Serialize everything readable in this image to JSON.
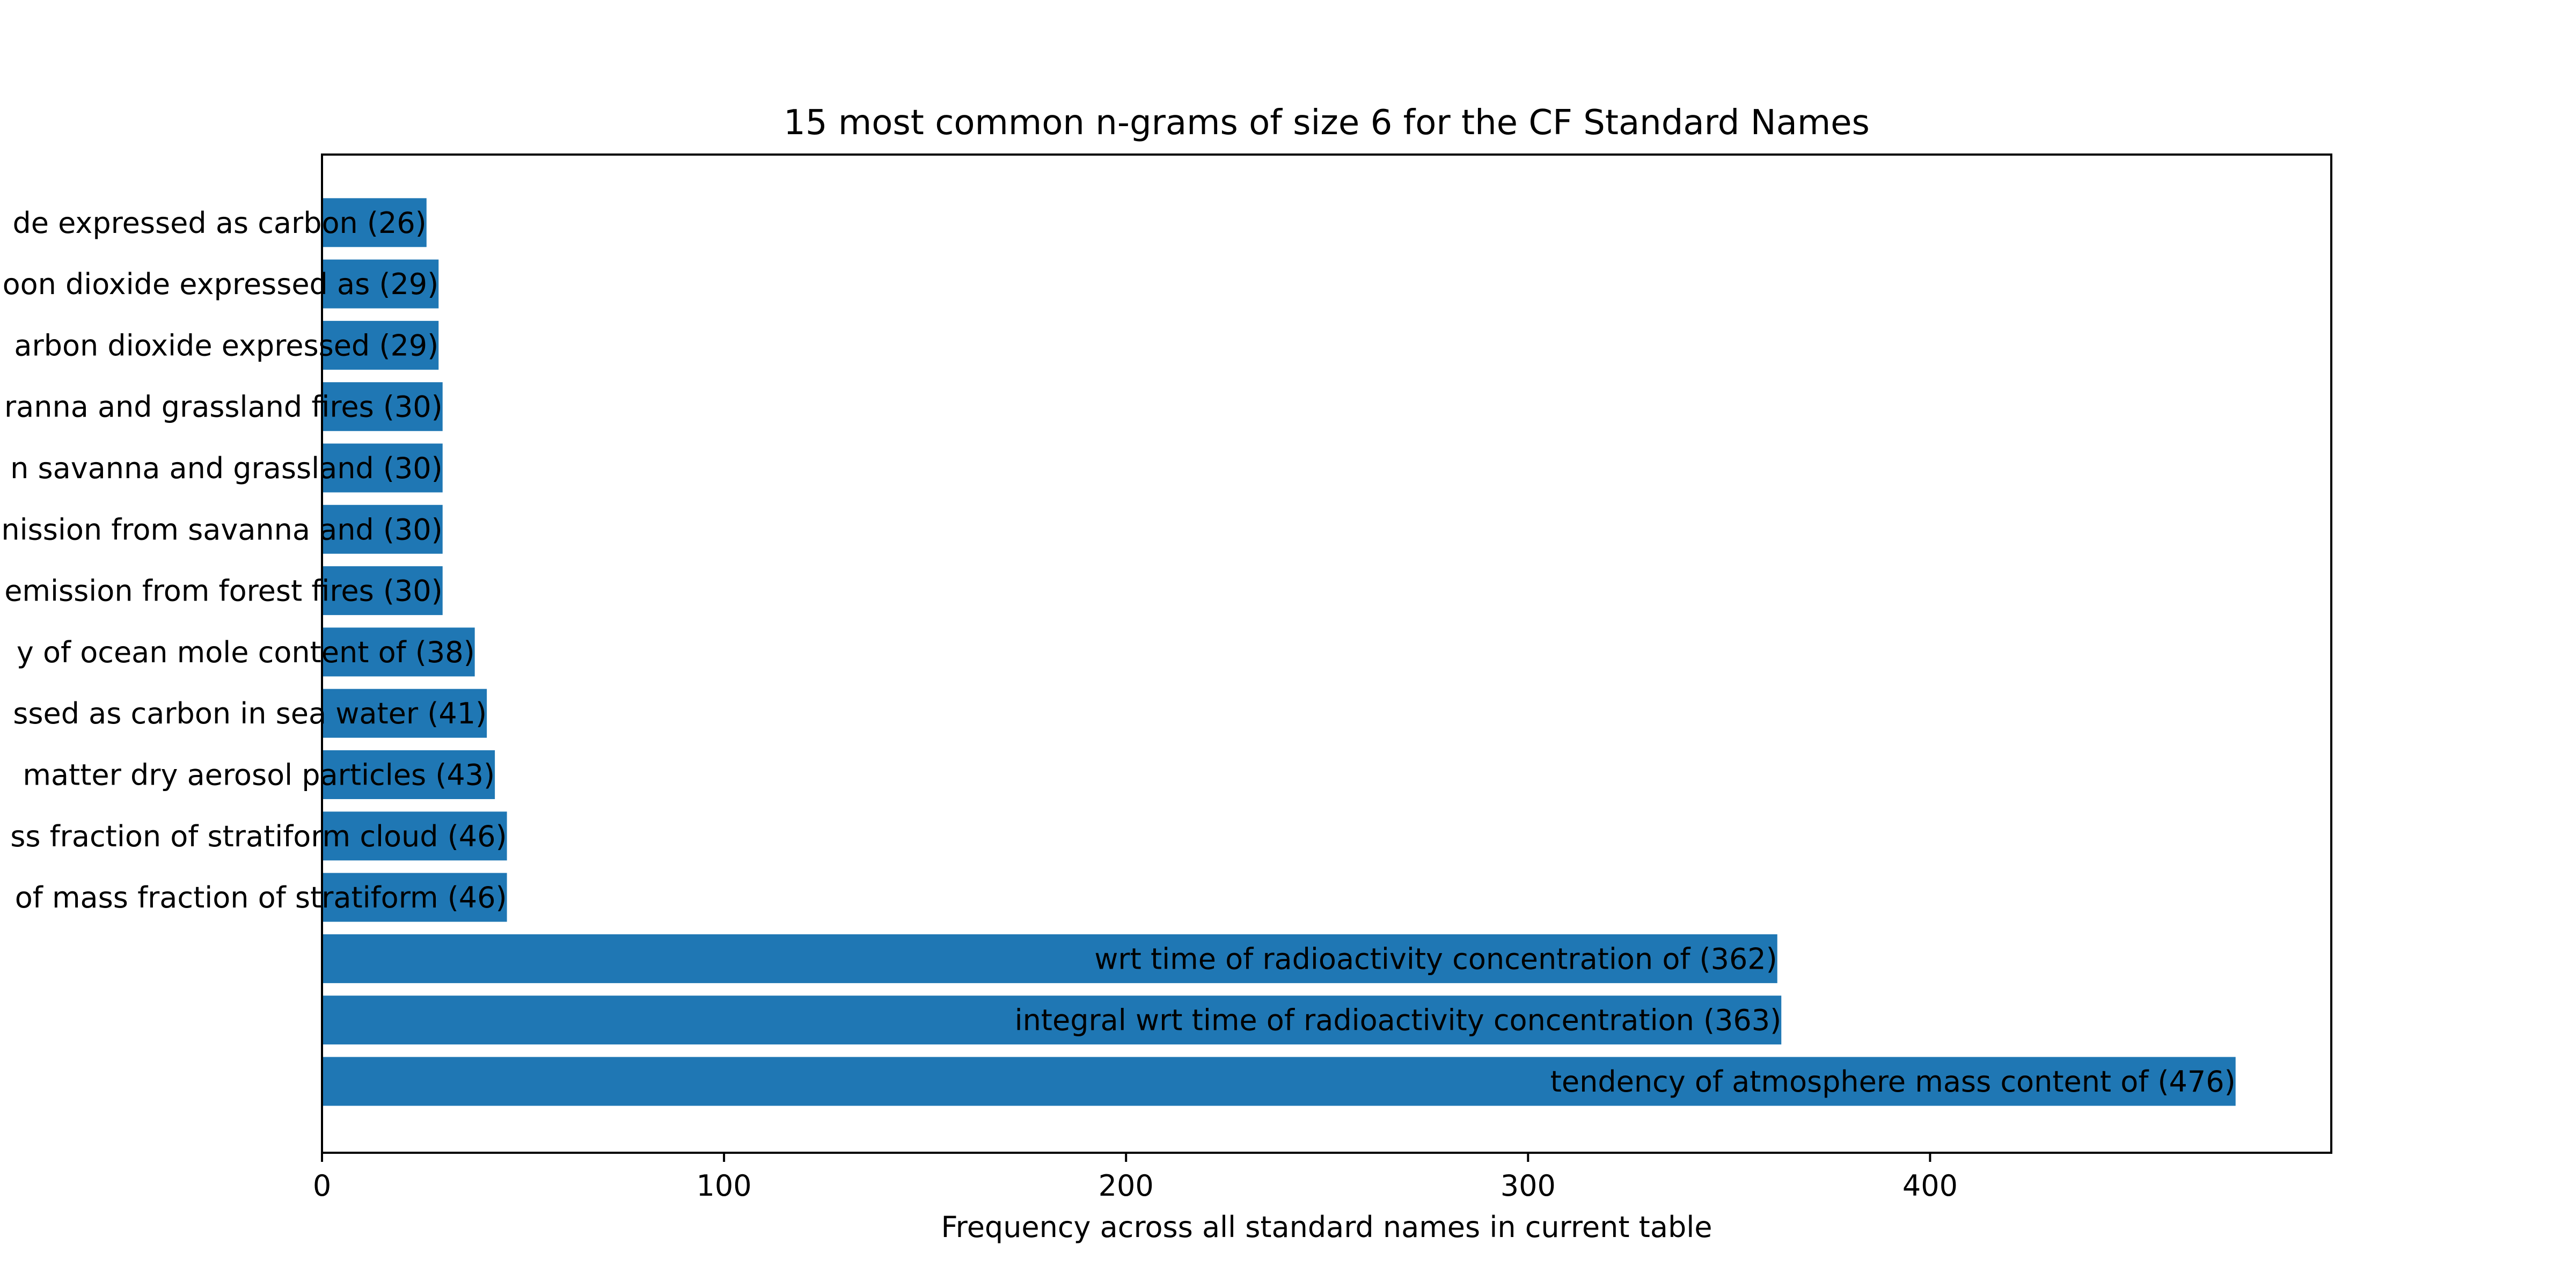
{
  "chart_data": {
    "type": "bar",
    "orientation": "horizontal",
    "title": "15 most common n-grams of size 6 for the CF Standard Names",
    "xlabel": "Frequency across all standard names in current table",
    "ylabel": "",
    "xlim": [
      0,
      500
    ],
    "x_ticks": [
      0,
      100,
      200,
      300,
      400
    ],
    "grid": false,
    "legend": "none",
    "bar_color": "#1f77b4",
    "categories": [
      "tendency of atmosphere mass content of",
      "integral wrt time of radioactivity concentration",
      "wrt time of radioactivity concentration of",
      "of mass fraction of stratiform",
      "ss fraction of stratiform cloud",
      "matter dry aerosol particles",
      "ssed as carbon in sea water",
      "y of ocean mole content of",
      "emission from forest fires",
      "nission from savanna and",
      "n savanna and grassland",
      "ranna and grassland fires",
      "arbon dioxide expressed",
      "oon dioxide expressed as",
      "de expressed as carbon"
    ],
    "values": [
      476,
      363,
      362,
      46,
      46,
      43,
      41,
      38,
      30,
      30,
      30,
      30,
      29,
      29,
      26
    ],
    "bar_labels": [
      "tendency of atmosphere mass content of (476)",
      "integral wrt time of radioactivity concentration (363)",
      "wrt time of radioactivity concentration of (362)",
      "of mass fraction of stratiform (46)",
      "ss fraction of stratiform cloud (46)",
      "matter dry aerosol particles (43)",
      "ssed as carbon in sea water (41)",
      "y of ocean mole content of (38)",
      "emission from forest fires (30)",
      "nission from savanna and (30)",
      "n savanna and grassland (30)",
      "ranna and grassland fires (30)",
      "arbon dioxide expressed (29)",
      "oon dioxide expressed as (29)",
      "de expressed as carbon (26)"
    ]
  }
}
